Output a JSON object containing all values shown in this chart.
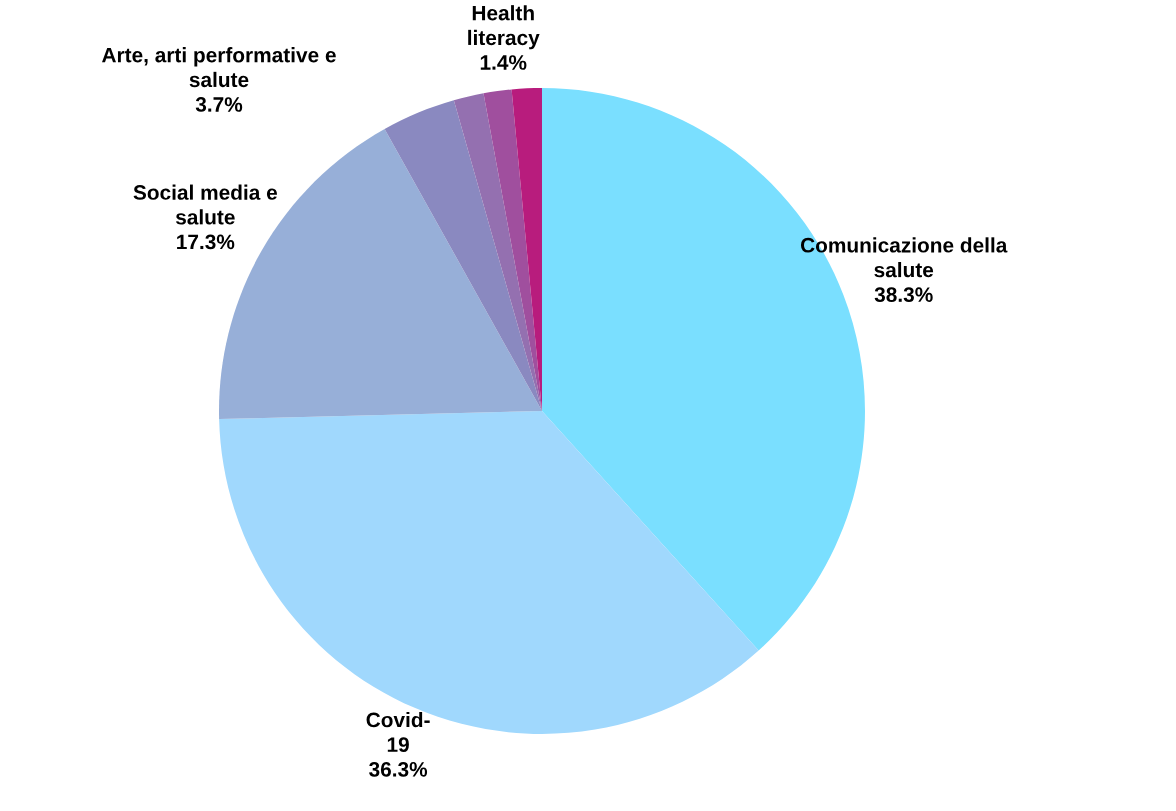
{
  "chart_data": {
    "type": "pie",
    "categories": [
      "Comunicazione della\nsalute",
      "Covid-\n19",
      "Social media e\nsalute",
      "Arte, arti performative e\nsalute",
      null,
      "Health\nliteracy",
      null
    ],
    "values": [
      38.3,
      36.3,
      17.3,
      3.7,
      1.5,
      1.4,
      1.5
    ],
    "colors": [
      "#7adfff",
      "#a0d8fd",
      "#97afd8",
      "#8a89c0",
      "#9470b0",
      "#a04f9e",
      "#b81c7d"
    ],
    "value_labels": [
      "38.3%",
      "36.3%",
      "17.3%",
      "3.7%",
      null,
      "1.4%",
      null
    ],
    "legend": false
  }
}
